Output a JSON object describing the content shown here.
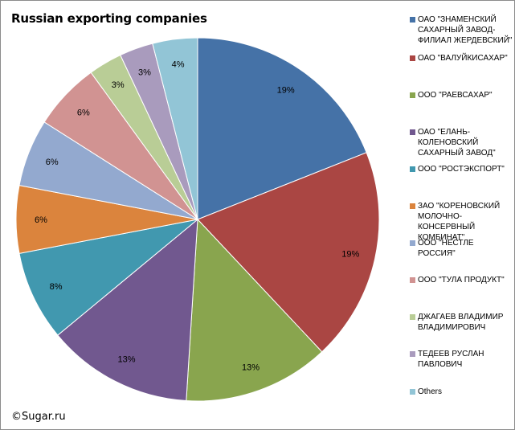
{
  "chart_data": {
    "type": "pie",
    "title": "Russian exporting companies",
    "categories": [
      "ОАО \"ЗНАМЕНСКИЙ САХАРНЫЙ ЗАВОД-ФИЛИАЛ ЖЕРДЕВСКИЙ\"",
      "ОАО \"ВАЛУЙКИСАХАР\"",
      "ООО \"РАЕВСАХАР\"",
      "ОАО \"ЕЛАНЬ-КОЛЕНОВСКИЙ САХАРНЫЙ ЗАВОД\"",
      "ООО \"РОСТЭКСПОРТ\"",
      "ЗАО \"КОРЕНОВСКИЙ МОЛОЧНО-КОНСЕРВНЫЙ КОМБИНАТ\"",
      "ООО \"НЕСТЛЕ РОССИЯ\"",
      "ООО \"ТУЛА ПРОДУКТ\"",
      "ДЖАГАЕВ ВЛАДИМИР ВЛАДИМИРОВИЧ",
      "ТЕДЕЕВ РУСЛАН ПАВЛОВИЧ",
      "Others"
    ],
    "values": [
      19,
      19,
      13,
      13,
      8,
      6,
      6,
      6,
      3,
      3,
      4
    ],
    "data_labels": [
      "19%",
      "19%",
      "13%",
      "13%",
      "8%",
      "6%",
      "6%",
      "6%",
      "3%",
      "3%",
      "4%"
    ],
    "colors": [
      "#4572a7",
      "#aa4643",
      "#89a54e",
      "#71588f",
      "#4198af",
      "#db843d",
      "#93a9cf",
      "#d19392",
      "#b9cd96",
      "#a99bbd",
      "#92c5d6"
    ],
    "legend_position": "right"
  },
  "credit": "©Sugar.ru"
}
